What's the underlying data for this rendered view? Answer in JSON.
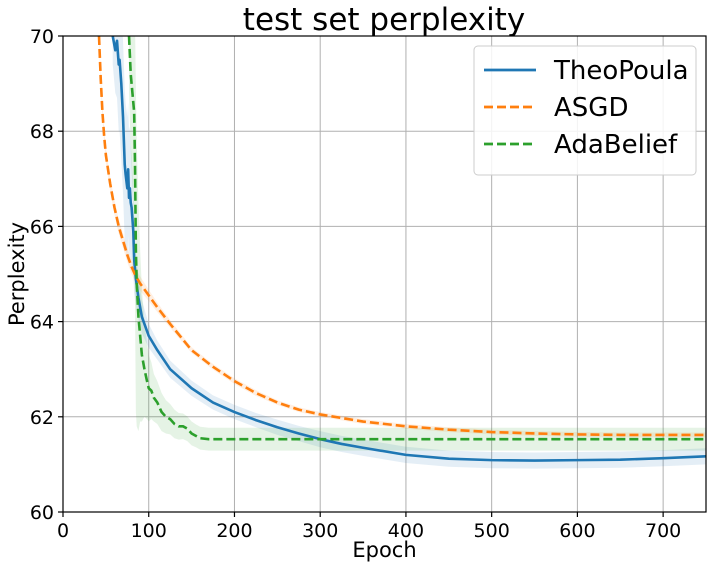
{
  "chart_data": {
    "type": "line",
    "title": "test set perplexity",
    "xlabel": "Epoch",
    "ylabel": "Perplexity",
    "xlim": [
      0,
      750
    ],
    "ylim": [
      60,
      70
    ],
    "xticks": [
      0,
      100,
      200,
      300,
      400,
      500,
      600,
      700
    ],
    "yticks": [
      60,
      62,
      64,
      66,
      68,
      70
    ],
    "grid": true,
    "legend_position": "top-right",
    "series": [
      {
        "name": "TheoPoula",
        "color": "#1f77b4",
        "style": "solid",
        "x": [
          58,
          61,
          63,
          65,
          66,
          68,
          70,
          72,
          73,
          75,
          76,
          77,
          78,
          79,
          80,
          82,
          83,
          85,
          88,
          92,
          100,
          110,
          125,
          150,
          175,
          200,
          225,
          250,
          275,
          300,
          325,
          350,
          400,
          450,
          500,
          550,
          600,
          650,
          700,
          750
        ],
        "y": [
          70,
          69.7,
          69.9,
          69.4,
          69.5,
          69.0,
          68.3,
          67.3,
          67.1,
          66.8,
          67.2,
          66.6,
          66.8,
          66.5,
          66.4,
          65.9,
          65.3,
          64.9,
          64.5,
          64.1,
          63.7,
          63.4,
          63.0,
          62.6,
          62.3,
          62.1,
          61.93,
          61.78,
          61.65,
          61.53,
          61.43,
          61.35,
          61.2,
          61.12,
          61.09,
          61.08,
          61.09,
          61.1,
          61.13,
          61.17
        ],
        "band": [
          0.6,
          0.9,
          1.2,
          1.4,
          1.5,
          1.6,
          1.6,
          1.6,
          1.5,
          1.5,
          1.4,
          1.4,
          1.3,
          1.2,
          1.1,
          0.9,
          0.7,
          0.55,
          0.45,
          0.35,
          0.25,
          0.2,
          0.18,
          0.16,
          0.15,
          0.15,
          0.15,
          0.16,
          0.16,
          0.17,
          0.17,
          0.17,
          0.17,
          0.17,
          0.17,
          0.17,
          0.17,
          0.17,
          0.17,
          0.17
        ]
      },
      {
        "name": "ASGD",
        "color": "#ff7f0e",
        "style": "dashed",
        "x": [
          42,
          44,
          46,
          48,
          50,
          55,
          60,
          65,
          70,
          75,
          80,
          85,
          90,
          100,
          110,
          125,
          150,
          175,
          200,
          225,
          250,
          275,
          300,
          350,
          400,
          450,
          500,
          550,
          600,
          650,
          700,
          750
        ],
        "y": [
          70,
          69.1,
          68.4,
          67.9,
          67.5,
          66.9,
          66.4,
          66.0,
          65.7,
          65.4,
          65.15,
          64.95,
          64.8,
          64.55,
          64.3,
          63.95,
          63.4,
          63.05,
          62.75,
          62.5,
          62.3,
          62.15,
          62.05,
          61.9,
          61.8,
          61.73,
          61.68,
          61.65,
          61.63,
          61.62,
          61.62,
          61.62
        ],
        "band": [
          0.15,
          0.15,
          0.15,
          0.15,
          0.15,
          0.15,
          0.15,
          0.15,
          0.15,
          0.15,
          0.15,
          0.15,
          0.15,
          0.12,
          0.1,
          0.08,
          0.06,
          0.06,
          0.06,
          0.06,
          0.05,
          0.05,
          0.05,
          0.05,
          0.05,
          0.05,
          0.05,
          0.05,
          0.05,
          0.05,
          0.05,
          0.05
        ]
      },
      {
        "name": "AdaBelief",
        "color": "#2ca02c",
        "style": "dashed",
        "x": [
          77,
          78,
          79,
          80,
          81,
          82,
          83,
          84,
          85,
          86,
          88,
          90,
          92,
          95,
          98,
          100,
          103,
          106,
          110,
          115,
          120,
          125,
          130,
          135,
          140,
          145,
          150,
          155,
          160,
          170,
          200,
          300,
          400,
          500,
          600,
          700,
          750
        ],
        "y": [
          70,
          69.6,
          69.2,
          69.0,
          68.8,
          68.6,
          68.4,
          67.3,
          65.5,
          64.8,
          64.1,
          63.7,
          63.3,
          63.0,
          62.75,
          62.6,
          62.55,
          62.4,
          62.3,
          62.1,
          62.0,
          61.95,
          61.85,
          61.8,
          61.8,
          61.75,
          61.65,
          61.6,
          61.55,
          61.53,
          61.53,
          61.53,
          61.53,
          61.53,
          61.53,
          61.53,
          61.53
        ],
        "band": [
          1.2,
          1.4,
          1.6,
          1.8,
          2.0,
          2.2,
          2.6,
          3.0,
          3.4,
          3.0,
          2.4,
          1.8,
          1.4,
          1.0,
          0.8,
          0.7,
          0.6,
          0.5,
          0.45,
          0.4,
          0.35,
          0.32,
          0.3,
          0.28,
          0.27,
          0.26,
          0.25,
          0.24,
          0.24,
          0.24,
          0.24,
          0.24,
          0.24,
          0.24,
          0.24,
          0.24,
          0.24
        ]
      }
    ]
  }
}
